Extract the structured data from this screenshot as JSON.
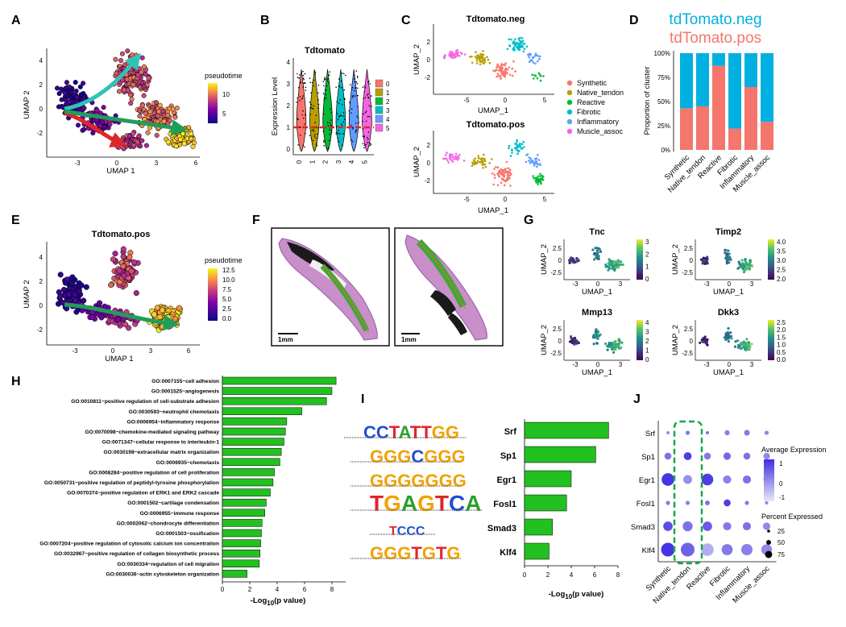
{
  "colors": {
    "synthetic": "#F8766D",
    "native_tendon": "#B79F00",
    "reactive": "#00BA38",
    "fibrotic": "#00BFC4",
    "inflammatory": "#619CFF",
    "muscle_assoc": "#F564E3",
    "neg": "#00B0E0",
    "pos": "#F4766C",
    "bar_green": "#22C020",
    "dashed_green": "#18A848"
  },
  "panels": {
    "A": {
      "letter": "A",
      "xlabel": "UMAP 1",
      "ylabel": "UMAP 2",
      "legend_title": "pseudotime",
      "legend_ticks": [
        "10",
        "5"
      ],
      "xticks": [
        "-3",
        "0",
        "3",
        "6"
      ],
      "yticks": [
        "4",
        "2",
        "0",
        "-2"
      ]
    },
    "B": {
      "letter": "B",
      "title": "Tdtomato",
      "ylabel": "Expression Level",
      "yticks": [
        "4",
        "3",
        "2",
        "1",
        "0"
      ],
      "clusters": [
        "0",
        "1",
        "2",
        "3",
        "4",
        "5"
      ]
    },
    "C": {
      "letter": "C",
      "title_neg": "Tdtomato.neg",
      "title_pos": "Tdtomato.pos",
      "xlabel": "UMAP_1",
      "ylabel": "UMAP_2",
      "xticks": [
        "-5",
        "0",
        "5"
      ],
      "yticks_neg": [
        "2",
        "0",
        "-2"
      ],
      "yticks_pos": [
        "2",
        "0",
        "-2"
      ],
      "legend": [
        "Synthetic",
        "Native_tendon",
        "Reactive",
        "Fibrotic",
        "Inflammatory",
        "Muscle_assoc"
      ]
    },
    "D": {
      "letter": "D",
      "label_neg": "tdTomato.neg",
      "label_pos": "tdTomato.pos",
      "ylabel": "Proportion of cluster",
      "yticks": [
        "100%",
        "75%",
        "50%",
        "25%",
        "0%"
      ]
    },
    "E": {
      "letter": "E",
      "title": "Tdtomato.pos",
      "xlabel": "UMAP 1",
      "ylabel": "UMAP 2",
      "legend_title": "pseudotime",
      "legend_ticks": [
        "12.5",
        "10.0",
        "7.5",
        "5.0",
        "2.5",
        "0.0"
      ],
      "xticks": [
        "-3",
        "0",
        "3",
        "6"
      ],
      "yticks": [
        "4",
        "2",
        "0",
        "-2"
      ]
    },
    "F": {
      "letter": "F",
      "scale_bar": "1mm"
    },
    "G": {
      "letter": "G",
      "xlabel": "UMAP_1",
      "ylabel": "UMAP_2",
      "xticks": [
        "-3",
        "0",
        "3"
      ],
      "genes": [
        {
          "name": "Tnc",
          "ticks": [
            "3",
            "2",
            "1",
            "0"
          ]
        },
        {
          "name": "Timp2",
          "ticks": [
            "4.0",
            "3.5",
            "3.0",
            "2.5",
            "2.0"
          ]
        },
        {
          "name": "Mmp13",
          "ticks": [
            "4",
            "3",
            "2",
            "1",
            "0"
          ]
        },
        {
          "name": "Dkk3",
          "ticks": [
            "2.5",
            "2.0",
            "1.5",
            "1.0",
            "0.5",
            "0.0"
          ]
        }
      ]
    },
    "H": {
      "letter": "H",
      "xticks": [
        "0",
        "2",
        "4",
        "6",
        "8"
      ],
      "xlabel_pre": "-Log",
      "xlabel_sub": "10",
      "xlabel_post": "(p value)"
    },
    "I": {
      "letter": "I",
      "xticks": [
        "0",
        "2",
        "4",
        "6",
        "8"
      ],
      "xlabel_pre": "-Log",
      "xlabel_sub": "10",
      "xlabel_post": "(p value)",
      "motifs": [
        "CCTATTGG",
        "GGGCGGG",
        "GGGGGGG",
        "TGAGTCA",
        "TCCC",
        "GGGTGTG"
      ]
    },
    "J": {
      "letter": "J",
      "legend_avg_title": "Average Expression",
      "legend_avg_ticks": [
        "1",
        "0",
        "-1"
      ],
      "legend_pct_title": "Percent Expressed",
      "legend_pct_ticks": [
        "25",
        "50",
        "75"
      ],
      "genes": [
        "Srf",
        "Sp1",
        "Egr1",
        "Fosl1",
        "Smad3",
        "Klf4"
      ]
    }
  },
  "chart_data": [
    {
      "type": "bar",
      "id": "D",
      "categories": [
        "Synthetic",
        "Native_tendon",
        "Reactive",
        "Fibrotic",
        "Inflammatory",
        "Muscle_assoc"
      ],
      "series": [
        {
          "name": "tdTomato.pos",
          "values": [
            0.43,
            0.45,
            0.87,
            0.22,
            0.65,
            0.29
          ]
        },
        {
          "name": "tdTomato.neg",
          "values": [
            0.57,
            0.55,
            0.13,
            0.78,
            0.35,
            0.71
          ]
        }
      ],
      "ylabel": "Proportion of cluster",
      "ylim": [
        0,
        1
      ]
    },
    {
      "type": "bar",
      "id": "H",
      "orientation": "horizontal",
      "categories": [
        "GO:0007155~cell adhesion",
        "GO:0001525~angiogenesis",
        "GO:0010811~positive regulation of cell-substrate adhesion",
        "GO:0030593~neutrophil chemotaxis",
        "GO:0006954~inflammatory response",
        "GO:0070098~chemokine-mediated signaling pathway",
        "GO:0071347~cellular response to interleukin-1",
        "GO:0030198~extracellular matrix organization",
        "GO:0006935~chemotaxis",
        "GO:0008284~positive regulation of cell proliferation",
        "GO:0050731~positive regulation of peptidyl-tyrosine phosphorylation",
        "GO:0070374~positive regulation of ERK1 and ERK2 cascade",
        "GO:0001502~cartilage condensation",
        "GO:0006955~immune response",
        "GO:0002062~chondrocyte differentiation",
        "GO:0001503~ossification",
        "GO:0007204~positive regulation of cytosolic calcium ion concentration",
        "GO:0032967~positive regulation of collagen biosynthetic process",
        "GO:0030334~regulation of cell migration",
        "GO:0030036~actin cytoskeleton organization"
      ],
      "values": [
        8.3,
        8.0,
        7.6,
        5.8,
        4.7,
        4.6,
        4.5,
        4.3,
        4.2,
        3.8,
        3.7,
        3.5,
        3.2,
        3.1,
        2.9,
        2.85,
        2.8,
        2.75,
        2.7,
        1.8
      ],
      "xlim": [
        0,
        9
      ]
    },
    {
      "type": "bar",
      "id": "I",
      "orientation": "horizontal",
      "categories": [
        "Srf",
        "Sp1",
        "Egr1",
        "Fosl1",
        "Smad3",
        "Klf4"
      ],
      "values": [
        7.2,
        6.1,
        4.0,
        3.6,
        2.4,
        2.1
      ],
      "xlim": [
        0,
        8
      ]
    },
    {
      "type": "scatter",
      "id": "J",
      "x": [
        "Synthetic",
        "Native_tendon",
        "Reactive",
        "Fibrotic",
        "Inflammatory",
        "Muscle_assoc"
      ],
      "y": [
        "Srf",
        "Sp1",
        "Egr1",
        "Fosl1",
        "Smad3",
        "Klf4"
      ],
      "pct": [
        [
          5,
          8,
          5,
          12,
          15,
          8
        ],
        [
          22,
          28,
          22,
          25,
          22,
          20
        ],
        [
          72,
          35,
          62,
          30,
          30,
          20
        ],
        [
          8,
          8,
          10,
          22,
          8,
          5
        ],
        [
          40,
          45,
          40,
          30,
          30,
          25
        ],
        [
          85,
          85,
          70,
          55,
          58,
          52
        ]
      ],
      "avg": [
        [
          0.2,
          0.5,
          0.6,
          0.4,
          0.5,
          0.3
        ],
        [
          0.6,
          1.3,
          0.5,
          0.7,
          0.6,
          0.3
        ],
        [
          1.4,
          0.2,
          1.3,
          0.4,
          0.6,
          0.2
        ],
        [
          0.5,
          0.4,
          0.6,
          1.3,
          0.5,
          0.3
        ],
        [
          1.1,
          0.6,
          0.9,
          0.5,
          0.6,
          0.3
        ],
        [
          1.4,
          0.8,
          -0.2,
          0.5,
          0.4,
          0.3
        ]
      ]
    }
  ]
}
